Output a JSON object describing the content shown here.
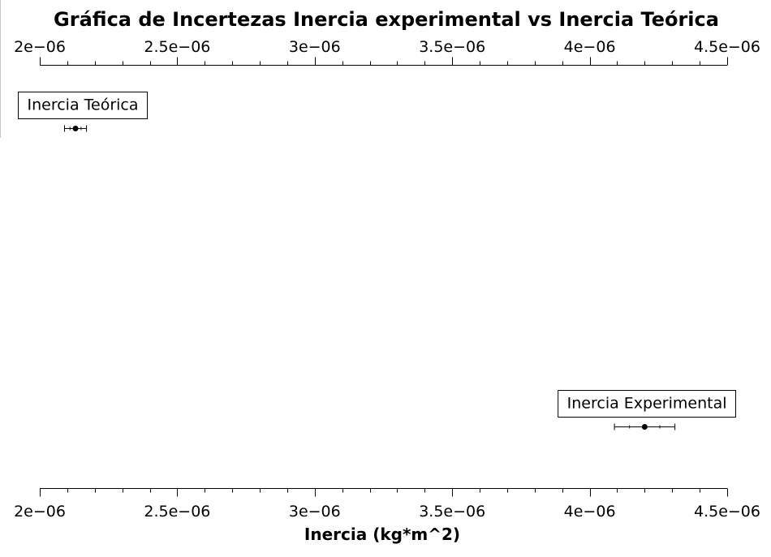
{
  "chart_data": {
    "type": "scatter",
    "title": "Gráfica de Incertezas Inercia experimental vs Inercia Teórica",
    "xlabel": "Inercia (kg*m^2)",
    "ylabel": "",
    "xlim": [
      2e-06,
      4.5e-06
    ],
    "x_ticks": [
      2e-06,
      2.5e-06,
      3e-06,
      3.5e-06,
      4e-06,
      4.5e-06
    ],
    "x_tick_labels": [
      "2e−06",
      "2.5e−06",
      "3e−06",
      "3.5e−06",
      "4e−06",
      "4.5e−06"
    ],
    "points": [
      {
        "label": "Inercia Teórica",
        "x": 2.13e-06,
        "error": 4e-08
      },
      {
        "label": "Inercia Experimental",
        "x": 4.2e-06,
        "error": 1.1e-07
      }
    ],
    "grid": false,
    "legend": "none"
  }
}
